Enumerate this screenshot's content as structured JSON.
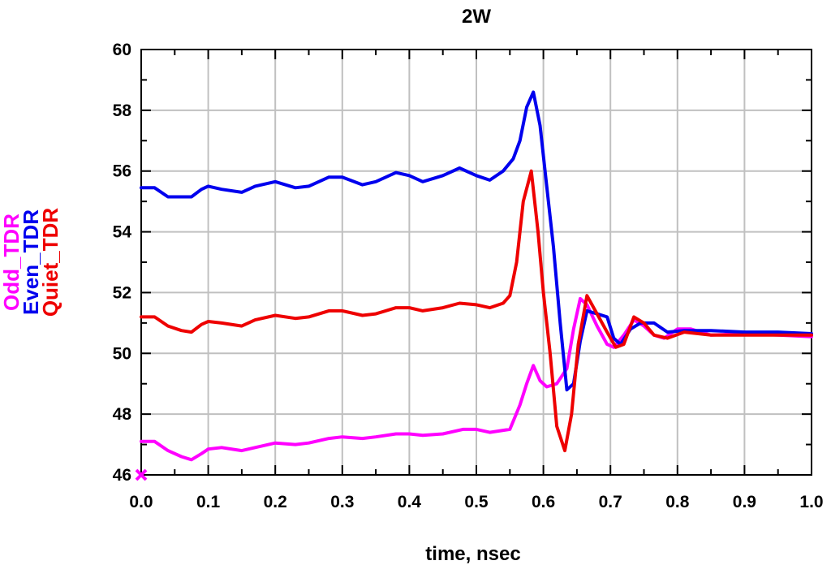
{
  "chart_data": {
    "type": "line",
    "title": "2W",
    "xlabel": "time, nsec",
    "xlim": [
      0.0,
      1.0
    ],
    "ylim": [
      46,
      60
    ],
    "grid": true,
    "x_ticks": [
      "0.0",
      "0.1",
      "0.2",
      "0.3",
      "0.4",
      "0.5",
      "0.6",
      "0.7",
      "0.8",
      "0.9",
      "1.0"
    ],
    "y_ticks": [
      "46",
      "48",
      "50",
      "52",
      "54",
      "56",
      "58",
      "60"
    ],
    "marker": {
      "x": 0.0,
      "y": 46.0,
      "color": "#ff00ff",
      "symbol": "x"
    },
    "series": [
      {
        "name": "Odd_TDR",
        "color": "#ff00ff",
        "points": [
          [
            0.0,
            47.1
          ],
          [
            0.02,
            47.1
          ],
          [
            0.04,
            46.8
          ],
          [
            0.06,
            46.6
          ],
          [
            0.075,
            46.5
          ],
          [
            0.09,
            46.7
          ],
          [
            0.1,
            46.85
          ],
          [
            0.12,
            46.9
          ],
          [
            0.15,
            46.8
          ],
          [
            0.17,
            46.9
          ],
          [
            0.2,
            47.05
          ],
          [
            0.23,
            47.0
          ],
          [
            0.25,
            47.05
          ],
          [
            0.28,
            47.2
          ],
          [
            0.3,
            47.25
          ],
          [
            0.33,
            47.2
          ],
          [
            0.35,
            47.25
          ],
          [
            0.38,
            47.35
          ],
          [
            0.4,
            47.35
          ],
          [
            0.42,
            47.3
          ],
          [
            0.45,
            47.35
          ],
          [
            0.48,
            47.5
          ],
          [
            0.5,
            47.5
          ],
          [
            0.52,
            47.4
          ],
          [
            0.55,
            47.5
          ],
          [
            0.565,
            48.3
          ],
          [
            0.575,
            49.0
          ],
          [
            0.585,
            49.6
          ],
          [
            0.595,
            49.1
          ],
          [
            0.605,
            48.9
          ],
          [
            0.62,
            49.0
          ],
          [
            0.635,
            49.5
          ],
          [
            0.645,
            50.8
          ],
          [
            0.655,
            51.8
          ],
          [
            0.665,
            51.6
          ],
          [
            0.68,
            50.9
          ],
          [
            0.695,
            50.3
          ],
          [
            0.705,
            50.2
          ],
          [
            0.72,
            50.6
          ],
          [
            0.735,
            51.1
          ],
          [
            0.75,
            50.9
          ],
          [
            0.765,
            50.6
          ],
          [
            0.78,
            50.5
          ],
          [
            0.8,
            50.8
          ],
          [
            0.82,
            50.8
          ],
          [
            0.85,
            50.6
          ],
          [
            0.9,
            50.65
          ],
          [
            0.95,
            50.6
          ],
          [
            1.0,
            50.55
          ]
        ]
      },
      {
        "name": "Even_TDR",
        "color": "#0000ee",
        "points": [
          [
            0.0,
            55.45
          ],
          [
            0.02,
            55.45
          ],
          [
            0.04,
            55.15
          ],
          [
            0.06,
            55.15
          ],
          [
            0.075,
            55.15
          ],
          [
            0.09,
            55.4
          ],
          [
            0.1,
            55.5
          ],
          [
            0.12,
            55.4
          ],
          [
            0.15,
            55.3
          ],
          [
            0.17,
            55.5
          ],
          [
            0.2,
            55.65
          ],
          [
            0.23,
            55.45
          ],
          [
            0.25,
            55.5
          ],
          [
            0.28,
            55.8
          ],
          [
            0.3,
            55.8
          ],
          [
            0.33,
            55.55
          ],
          [
            0.35,
            55.65
          ],
          [
            0.38,
            55.95
          ],
          [
            0.4,
            55.85
          ],
          [
            0.42,
            55.65
          ],
          [
            0.45,
            55.85
          ],
          [
            0.475,
            56.1
          ],
          [
            0.5,
            55.85
          ],
          [
            0.52,
            55.7
          ],
          [
            0.54,
            56.0
          ],
          [
            0.555,
            56.4
          ],
          [
            0.565,
            57.0
          ],
          [
            0.575,
            58.1
          ],
          [
            0.585,
            58.6
          ],
          [
            0.595,
            57.5
          ],
          [
            0.605,
            55.5
          ],
          [
            0.615,
            53.5
          ],
          [
            0.625,
            51.0
          ],
          [
            0.635,
            48.8
          ],
          [
            0.645,
            49.0
          ],
          [
            0.655,
            50.4
          ],
          [
            0.665,
            51.4
          ],
          [
            0.68,
            51.3
          ],
          [
            0.695,
            51.2
          ],
          [
            0.705,
            50.5
          ],
          [
            0.715,
            50.3
          ],
          [
            0.73,
            50.8
          ],
          [
            0.745,
            51.0
          ],
          [
            0.765,
            51.0
          ],
          [
            0.785,
            50.7
          ],
          [
            0.81,
            50.75
          ],
          [
            0.85,
            50.75
          ],
          [
            0.9,
            50.7
          ],
          [
            0.95,
            50.7
          ],
          [
            1.0,
            50.65
          ]
        ]
      },
      {
        "name": "Quiet_TDR",
        "color": "#ee0000",
        "points": [
          [
            0.0,
            51.2
          ],
          [
            0.02,
            51.2
          ],
          [
            0.04,
            50.9
          ],
          [
            0.06,
            50.75
          ],
          [
            0.075,
            50.7
          ],
          [
            0.09,
            50.95
          ],
          [
            0.1,
            51.05
          ],
          [
            0.12,
            51.0
          ],
          [
            0.15,
            50.9
          ],
          [
            0.17,
            51.1
          ],
          [
            0.2,
            51.25
          ],
          [
            0.23,
            51.15
          ],
          [
            0.25,
            51.2
          ],
          [
            0.28,
            51.4
          ],
          [
            0.3,
            51.4
          ],
          [
            0.33,
            51.25
          ],
          [
            0.35,
            51.3
          ],
          [
            0.38,
            51.5
          ],
          [
            0.4,
            51.5
          ],
          [
            0.42,
            51.4
          ],
          [
            0.45,
            51.5
          ],
          [
            0.475,
            51.65
          ],
          [
            0.5,
            51.6
          ],
          [
            0.52,
            51.5
          ],
          [
            0.54,
            51.65
          ],
          [
            0.55,
            51.9
          ],
          [
            0.56,
            53.0
          ],
          [
            0.57,
            55.0
          ],
          [
            0.582,
            56.0
          ],
          [
            0.592,
            54.0
          ],
          [
            0.6,
            52.0
          ],
          [
            0.61,
            50.0
          ],
          [
            0.62,
            47.6
          ],
          [
            0.632,
            46.8
          ],
          [
            0.642,
            48.0
          ],
          [
            0.652,
            50.3
          ],
          [
            0.665,
            51.9
          ],
          [
            0.68,
            51.3
          ],
          [
            0.695,
            50.7
          ],
          [
            0.708,
            50.2
          ],
          [
            0.72,
            50.3
          ],
          [
            0.735,
            51.2
          ],
          [
            0.75,
            51.0
          ],
          [
            0.765,
            50.6
          ],
          [
            0.785,
            50.5
          ],
          [
            0.81,
            50.7
          ],
          [
            0.85,
            50.6
          ],
          [
            0.9,
            50.6
          ],
          [
            0.95,
            50.6
          ],
          [
            1.0,
            50.6
          ]
        ]
      }
    ]
  }
}
